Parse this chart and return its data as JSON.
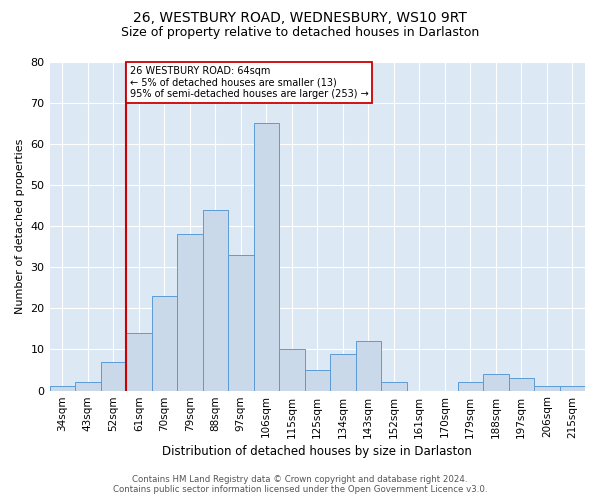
{
  "title": "26, WESTBURY ROAD, WEDNESBURY, WS10 9RT",
  "subtitle": "Size of property relative to detached houses in Darlaston",
  "xlabel": "Distribution of detached houses by size in Darlaston",
  "ylabel": "Number of detached properties",
  "categories": [
    "34sqm",
    "43sqm",
    "52sqm",
    "61sqm",
    "70sqm",
    "79sqm",
    "88sqm",
    "97sqm",
    "106sqm",
    "115sqm",
    "125sqm",
    "134sqm",
    "143sqm",
    "152sqm",
    "161sqm",
    "170sqm",
    "179sqm",
    "188sqm",
    "197sqm",
    "206sqm",
    "215sqm"
  ],
  "values": [
    1,
    2,
    7,
    14,
    23,
    38,
    44,
    33,
    65,
    10,
    5,
    9,
    12,
    2,
    0,
    0,
    2,
    4,
    3,
    1,
    1
  ],
  "bar_color": "#c9d9ea",
  "bar_edge_color": "#5b9bd5",
  "red_line_index": 3,
  "marker_label_line1": "26 WESTBURY ROAD: 64sqm",
  "marker_label_line2": "← 5% of detached houses are smaller (13)",
  "marker_label_line3": "95% of semi-detached houses are larger (253) →",
  "ylim_max": 80,
  "yticks": [
    0,
    10,
    20,
    30,
    40,
    50,
    60,
    70,
    80
  ],
  "footer1": "Contains HM Land Registry data © Crown copyright and database right 2024.",
  "footer2": "Contains public sector information licensed under the Open Government Licence v3.0.",
  "plot_bg": "#dce9f5",
  "grid_color": "#ffffff",
  "red_color": "#cc0000",
  "title_fontsize": 10,
  "subtitle_fontsize": 9,
  "xlabel_fontsize": 8.5,
  "ylabel_fontsize": 8,
  "tick_fontsize": 7.5,
  "footer_fontsize": 6.2
}
